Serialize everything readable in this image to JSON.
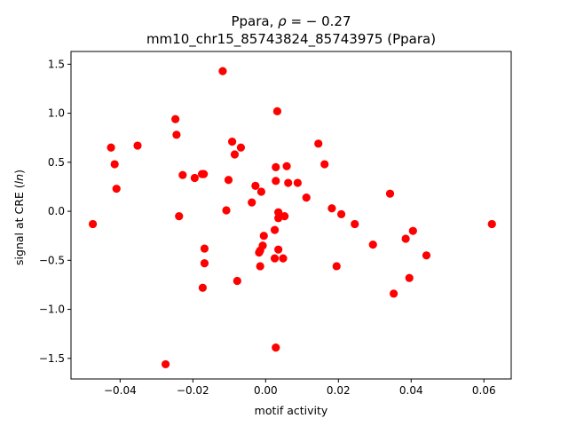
{
  "chart_data": {
    "type": "scatter",
    "title_prefix": "Ppara, ",
    "title_rho_symbol": "ρ",
    "title_rho_value": " = − 0.27",
    "subtitle": "mm10_chr15_85743824_85743975 (Ppara)",
    "xlabel": "motif activity",
    "ylabel_prefix": "signal at CRE (",
    "ylabel_ital": "ln",
    "ylabel_suffix": ")",
    "xlim": [
      -0.0535,
      0.0675
    ],
    "ylim": [
      -1.71,
      1.63
    ],
    "xticks": [
      -0.04,
      -0.02,
      0.0,
      0.02,
      0.04,
      0.06
    ],
    "xtick_labels": [
      "−0.04",
      "−0.02",
      "0.00",
      "0.02",
      "0.04",
      "0.06"
    ],
    "yticks": [
      -1.5,
      -1.0,
      -0.5,
      0.0,
      0.5,
      1.0,
      1.5
    ],
    "ytick_labels": [
      "−1.5",
      "−1.0",
      "−0.5",
      "0.0",
      "0.5",
      "1.0",
      "1.5"
    ],
    "grid": false,
    "marker_color": "#ff0000",
    "points": [
      {
        "x": -0.0475,
        "y": -0.13
      },
      {
        "x": -0.0425,
        "y": 0.65
      },
      {
        "x": -0.0415,
        "y": 0.48
      },
      {
        "x": -0.041,
        "y": 0.23
      },
      {
        "x": -0.0352,
        "y": 0.67
      },
      {
        "x": -0.0275,
        "y": -1.56
      },
      {
        "x": -0.0248,
        "y": 0.94
      },
      {
        "x": -0.0245,
        "y": 0.78
      },
      {
        "x": -0.0238,
        "y": -0.05
      },
      {
        "x": -0.0228,
        "y": 0.37
      },
      {
        "x": -0.0195,
        "y": 0.34
      },
      {
        "x": -0.0175,
        "y": 0.38
      },
      {
        "x": -0.017,
        "y": 0.38
      },
      {
        "x": -0.0173,
        "y": -0.78
      },
      {
        "x": -0.0168,
        "y": -0.53
      },
      {
        "x": -0.0168,
        "y": -0.38
      },
      {
        "x": -0.0118,
        "y": 1.43
      },
      {
        "x": -0.0108,
        "y": 0.01
      },
      {
        "x": -0.0102,
        "y": 0.32
      },
      {
        "x": -0.0092,
        "y": 0.71
      },
      {
        "x": -0.0085,
        "y": 0.58
      },
      {
        "x": -0.0078,
        "y": -0.71
      },
      {
        "x": -0.0068,
        "y": 0.65
      },
      {
        "x": -0.0038,
        "y": 0.09
      },
      {
        "x": -0.0028,
        "y": 0.26
      },
      {
        "x": -0.0018,
        "y": -0.42
      },
      {
        "x": -0.0015,
        "y": -0.4
      },
      {
        "x": -0.0015,
        "y": -0.56
      },
      {
        "x": -0.0012,
        "y": 0.2
      },
      {
        "x": -0.0008,
        "y": -0.35
      },
      {
        "x": -0.0005,
        "y": -0.25
      },
      {
        "x": 0.0025,
        "y": -0.48
      },
      {
        "x": 0.0025,
        "y": -0.19
      },
      {
        "x": 0.0028,
        "y": 0.31
      },
      {
        "x": 0.0028,
        "y": 0.45
      },
      {
        "x": 0.0028,
        "y": -1.39
      },
      {
        "x": 0.0032,
        "y": 1.02
      },
      {
        "x": 0.0035,
        "y": -0.07
      },
      {
        "x": 0.0035,
        "y": -0.01
      },
      {
        "x": 0.0035,
        "y": -0.39
      },
      {
        "x": 0.0048,
        "y": -0.48
      },
      {
        "x": 0.0052,
        "y": -0.05
      },
      {
        "x": 0.0058,
        "y": 0.46
      },
      {
        "x": 0.0062,
        "y": 0.29
      },
      {
        "x": 0.0088,
        "y": 0.29
      },
      {
        "x": 0.0112,
        "y": 0.14
      },
      {
        "x": 0.0145,
        "y": 0.69
      },
      {
        "x": 0.0162,
        "y": 0.48
      },
      {
        "x": 0.0182,
        "y": 0.03
      },
      {
        "x": 0.0195,
        "y": -0.56
      },
      {
        "x": 0.0208,
        "y": -0.03
      },
      {
        "x": 0.0245,
        "y": -0.13
      },
      {
        "x": 0.0295,
        "y": -0.34
      },
      {
        "x": 0.0342,
        "y": 0.18
      },
      {
        "x": 0.0352,
        "y": -0.84
      },
      {
        "x": 0.0385,
        "y": -0.28
      },
      {
        "x": 0.0395,
        "y": -0.68
      },
      {
        "x": 0.0405,
        "y": -0.2
      },
      {
        "x": 0.0442,
        "y": -0.45
      },
      {
        "x": 0.0622,
        "y": -0.13
      }
    ]
  }
}
